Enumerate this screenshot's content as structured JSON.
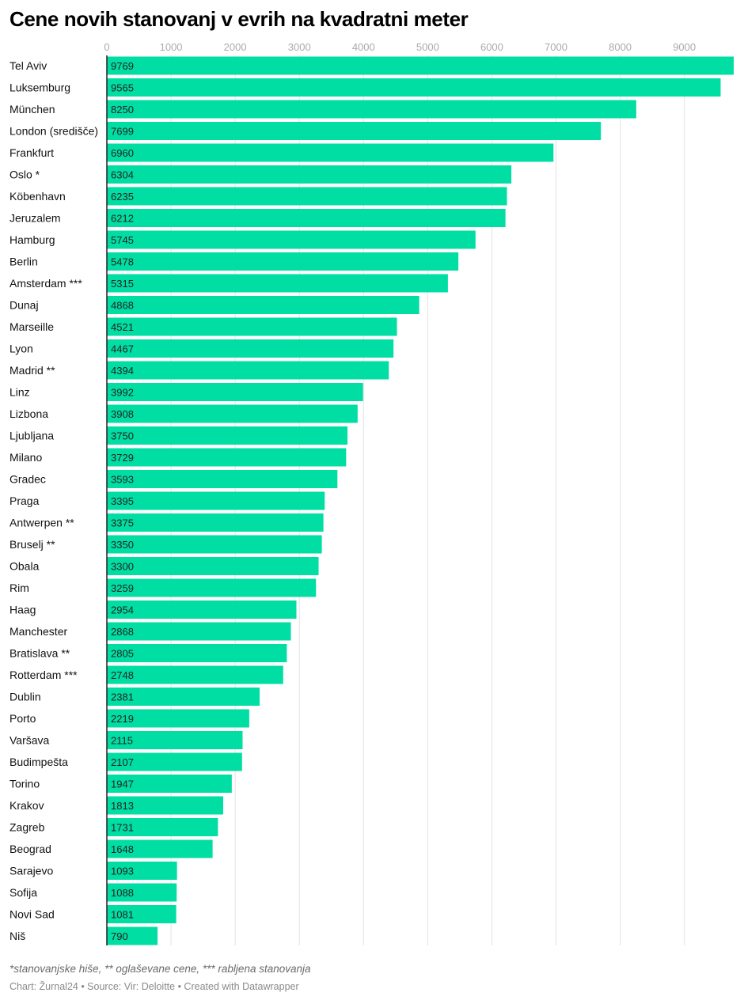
{
  "chart_data": {
    "type": "bar",
    "orientation": "horizontal",
    "title": "Cene novih stanovanj v evrih na kvadratni meter",
    "xlim": [
      0,
      9769
    ],
    "xticks": [
      0,
      1000,
      2000,
      3000,
      4000,
      5000,
      6000,
      7000,
      8000,
      9000
    ],
    "grid": true,
    "bar_color": "#00dea3",
    "categories": [
      "Tel Aviv",
      "Luksemburg",
      "München",
      "London (središče)",
      "Frankfurt",
      "Oslo *",
      "Köbenhavn",
      "Jeruzalem",
      "Hamburg",
      "Berlin",
      "Amsterdam ***",
      "Dunaj",
      "Marseille",
      "Lyon",
      "Madrid **",
      "Linz",
      "Lizbona",
      "Ljubljana",
      "Milano",
      "Gradec",
      "Praga",
      "Antwerpen **",
      "Bruselj **",
      "Obala",
      "Rim",
      "Haag",
      "Manchester",
      "Bratislava **",
      "Rotterdam ***",
      "Dublin",
      "Porto",
      "Varšava",
      "Budimpešta",
      "Torino",
      "Krakov",
      "Zagreb",
      "Beograd",
      "Sarajevo",
      "Sofija",
      "Novi Sad",
      "Niš"
    ],
    "values": [
      9769,
      9565,
      8250,
      7699,
      6960,
      6304,
      6235,
      6212,
      5745,
      5478,
      5315,
      4868,
      4521,
      4467,
      4394,
      3992,
      3908,
      3750,
      3729,
      3593,
      3395,
      3375,
      3350,
      3300,
      3259,
      2954,
      2868,
      2805,
      2748,
      2381,
      2219,
      2115,
      2107,
      1947,
      1813,
      1731,
      1648,
      1093,
      1088,
      1081,
      790
    ],
    "notes": "*stanovanjske hiše, ** oglaševane cene, *** rabljena stanovanja",
    "byline": "Chart: Žurnal24 • Source: Vir: Deloitte • Created with Datawrapper"
  }
}
